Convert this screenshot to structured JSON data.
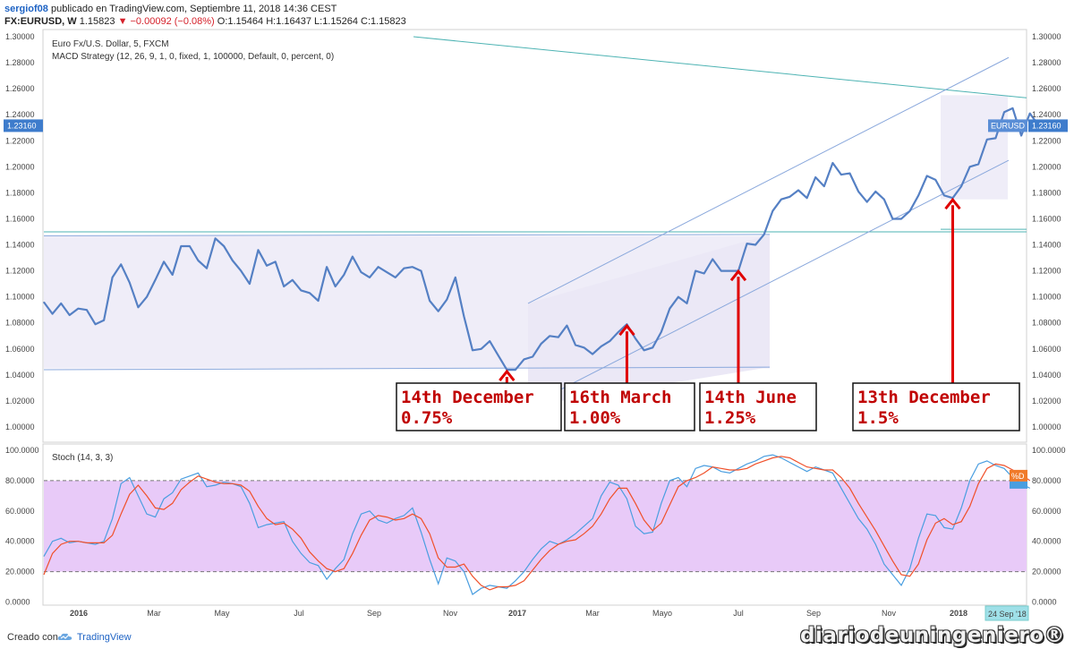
{
  "header": {
    "user": "sergiof08",
    "published": "publicado en TradingView.com, Septiembre 11, 2018 14:36 CEST",
    "symbol": "FX:EURUSD, W",
    "price": "1.15823",
    "change": "▼ −0.00092 (−0.08%)",
    "ohlc": "O:1.15464 H:1.16437 L:1.15264 C:1.15823"
  },
  "legend": {
    "title": "Euro Fx/U.S. Dollar, 5, FXCM",
    "strategy": "MACD Strategy (12, 26, 9, 1, 0, fixed, 1, 100000, Default, 0, percent, 0)",
    "stoch": "Stoch (14, 3, 3)"
  },
  "chart_data": [
    {
      "type": "line",
      "title": "Euro Fx/U.S. Dollar, 5, FXCM",
      "ylim": [
        0.99,
        1.3
      ],
      "y_ticks": [
        "1.30000",
        "1.28000",
        "1.26000",
        "1.24000",
        "1.22000",
        "1.20000",
        "1.18000",
        "1.16000",
        "1.14000",
        "1.12000",
        "1.10000",
        "1.08000",
        "1.06000",
        "1.04000",
        "1.02000",
        "1.00000"
      ],
      "x_ticks": [
        "2016",
        "Mar",
        "May",
        "Jul",
        "Sep",
        "Nov",
        "2017",
        "Mar",
        "Mayo",
        "Jul",
        "Sep",
        "Nov",
        "2018"
      ],
      "last_price_label": "1.23160",
      "series_label": "EURUSD",
      "colors": {
        "price": "#5580c4",
        "channel": "#8aa8dc",
        "resistance": "#4db3b3",
        "box_fill": "#efedf8"
      },
      "series": [
        {
          "name": "EURUSD",
          "points": [
            [
              0,
              1.096
            ],
            [
              1,
              1.087
            ],
            [
              2,
              1.095
            ],
            [
              3,
              1.086
            ],
            [
              4,
              1.091
            ],
            [
              5,
              1.09
            ],
            [
              6,
              1.079
            ],
            [
              7,
              1.082
            ],
            [
              8,
              1.115
            ],
            [
              9,
              1.125
            ],
            [
              10,
              1.111
            ],
            [
              11,
              1.092
            ],
            [
              12,
              1.1
            ],
            [
              13,
              1.113
            ],
            [
              14,
              1.127
            ],
            [
              15,
              1.117
            ],
            [
              16,
              1.139
            ],
            [
              17,
              1.139
            ],
            [
              18,
              1.128
            ],
            [
              19,
              1.122
            ],
            [
              20,
              1.145
            ],
            [
              21,
              1.139
            ],
            [
              22,
              1.128
            ],
            [
              23,
              1.12
            ],
            [
              24,
              1.11
            ],
            [
              25,
              1.136
            ],
            [
              26,
              1.124
            ],
            [
              27,
              1.127
            ],
            [
              28,
              1.108
            ],
            [
              29,
              1.113
            ],
            [
              30,
              1.105
            ],
            [
              31,
              1.103
            ],
            [
              32,
              1.097
            ],
            [
              33,
              1.123
            ],
            [
              34,
              1.108
            ],
            [
              35,
              1.117
            ],
            [
              36,
              1.131
            ],
            [
              37,
              1.119
            ],
            [
              38,
              1.115
            ],
            [
              39,
              1.123
            ],
            [
              40,
              1.119
            ],
            [
              41,
              1.115
            ],
            [
              42,
              1.122
            ],
            [
              43,
              1.123
            ],
            [
              44,
              1.12
            ],
            [
              45,
              1.097
            ],
            [
              46,
              1.089
            ],
            [
              47,
              1.098
            ],
            [
              48,
              1.115
            ],
            [
              49,
              1.085
            ],
            [
              50,
              1.059
            ],
            [
              51,
              1.06
            ],
            [
              52,
              1.066
            ],
            [
              53,
              1.055
            ],
            [
              54,
              1.044
            ],
            [
              55,
              1.044
            ],
            [
              56,
              1.052
            ],
            [
              57,
              1.054
            ],
            [
              58,
              1.064
            ],
            [
              59,
              1.07
            ],
            [
              60,
              1.069
            ],
            [
              61,
              1.078
            ],
            [
              62,
              1.063
            ],
            [
              63,
              1.061
            ],
            [
              64,
              1.056
            ],
            [
              65,
              1.062
            ],
            [
              66,
              1.066
            ],
            [
              67,
              1.073
            ],
            [
              68,
              1.079
            ],
            [
              69,
              1.068
            ],
            [
              70,
              1.059
            ],
            [
              71,
              1.061
            ],
            [
              72,
              1.073
            ],
            [
              73,
              1.091
            ],
            [
              74,
              1.1
            ],
            [
              75,
              1.095
            ],
            [
              76,
              1.12
            ],
            [
              77,
              1.118
            ],
            [
              78,
              1.129
            ],
            [
              79,
              1.12
            ],
            [
              80,
              1.12
            ],
            [
              81,
              1.12
            ],
            [
              82,
              1.141
            ],
            [
              83,
              1.14
            ],
            [
              84,
              1.148
            ],
            [
              85,
              1.166
            ],
            [
              86,
              1.175
            ],
            [
              87,
              1.177
            ],
            [
              88,
              1.182
            ],
            [
              89,
              1.176
            ],
            [
              90,
              1.192
            ],
            [
              91,
              1.185
            ],
            [
              92,
              1.203
            ],
            [
              93,
              1.194
            ],
            [
              94,
              1.195
            ],
            [
              95,
              1.181
            ],
            [
              96,
              1.173
            ],
            [
              97,
              1.181
            ],
            [
              98,
              1.175
            ],
            [
              99,
              1.16
            ],
            [
              100,
              1.16
            ],
            [
              101,
              1.166
            ],
            [
              102,
              1.178
            ],
            [
              103,
              1.193
            ],
            [
              104,
              1.19
            ],
            [
              105,
              1.178
            ],
            [
              106,
              1.176
            ],
            [
              107,
              1.185
            ],
            [
              108,
              1.2
            ],
            [
              109,
              1.202
            ],
            [
              110,
              1.221
            ],
            [
              111,
              1.222
            ],
            [
              112,
              1.242
            ],
            [
              113,
              1.245
            ],
            [
              114,
              1.224
            ],
            [
              115,
              1.241
            ],
            [
              116,
              1.232
            ]
          ]
        }
      ],
      "annotations": [
        {
          "date": "14th December",
          "rate": "0.75%",
          "arrow_x": 54,
          "arrow_y": 1.044
        },
        {
          "date": "16th March",
          "rate": "1.00%",
          "arrow_x": 68,
          "arrow_y": 1.079
        },
        {
          "date": "14th June",
          "rate": "1.25%",
          "arrow_x": 81,
          "arrow_y": 1.121
        },
        {
          "date": "13th December",
          "rate": "1.5%",
          "arrow_x": 106,
          "arrow_y": 1.176
        }
      ]
    },
    {
      "type": "line",
      "title": "Stoch (14, 3, 3)",
      "ylim": [
        0,
        100
      ],
      "y_ticks": [
        "100.0000",
        "80.0000",
        "60.0000",
        "40.0000",
        "20.0000",
        "0.0000"
      ],
      "bands": [
        20,
        80
      ],
      "last_label": "%D",
      "colors": {
        "k": "#4a9ee0",
        "d": "#f0502a",
        "band_fill": "#e8caf8"
      },
      "series": [
        {
          "name": "%K",
          "values": [
            30,
            40,
            42,
            39,
            40,
            39,
            38,
            40,
            55,
            78,
            82,
            70,
            58,
            56,
            68,
            72,
            81,
            83,
            85,
            76,
            77,
            79,
            78,
            76,
            65,
            49,
            51,
            52,
            53,
            40,
            32,
            26,
            24,
            15,
            22,
            28,
            45,
            58,
            60,
            54,
            52,
            55,
            57,
            62,
            46,
            28,
            12,
            29,
            27,
            20,
            5,
            9,
            11,
            10,
            9,
            14,
            20,
            28,
            35,
            40,
            38,
            41,
            45,
            50,
            55,
            70,
            79,
            77,
            68,
            50,
            45,
            46,
            65,
            80,
            82,
            76,
            88,
            90,
            89,
            86,
            85,
            88,
            91,
            93,
            96,
            97,
            95,
            92,
            89,
            86,
            89,
            87,
            85,
            75,
            65,
            55,
            48,
            38,
            25,
            18,
            11,
            22,
            42,
            58,
            57,
            49,
            48,
            62,
            80,
            91,
            93,
            90,
            88,
            82,
            78,
            75
          ],
          "first_x": 0
        },
        {
          "name": "%D",
          "values": [
            18,
            32,
            38,
            40,
            40,
            39,
            39,
            39,
            44,
            58,
            71,
            77,
            70,
            62,
            61,
            65,
            74,
            79,
            83,
            81,
            79,
            78,
            78,
            77,
            73,
            63,
            55,
            51,
            52,
            48,
            42,
            33,
            27,
            22,
            20,
            22,
            32,
            44,
            54,
            57,
            56,
            54,
            55,
            58,
            55,
            45,
            29,
            23,
            23,
            25,
            17,
            11,
            8,
            10,
            10,
            11,
            14,
            21,
            28,
            34,
            38,
            40,
            41,
            45,
            50,
            58,
            68,
            75,
            75,
            65,
            54,
            47,
            52,
            64,
            76,
            80,
            82,
            85,
            89,
            88,
            87,
            87,
            88,
            91,
            93,
            95,
            96,
            95,
            92,
            89,
            88,
            87,
            87,
            82,
            75,
            65,
            56,
            47,
            37,
            27,
            18,
            17,
            25,
            41,
            52,
            55,
            51,
            53,
            63,
            78,
            88,
            91,
            90,
            87,
            84,
            80
          ],
          "first_x": 0
        }
      ]
    }
  ],
  "date_badge": "24 Sep '18",
  "footer": {
    "created_with": "Creado con",
    "tradingview": "TradingView"
  },
  "watermark": "diariodeuningeniero®"
}
